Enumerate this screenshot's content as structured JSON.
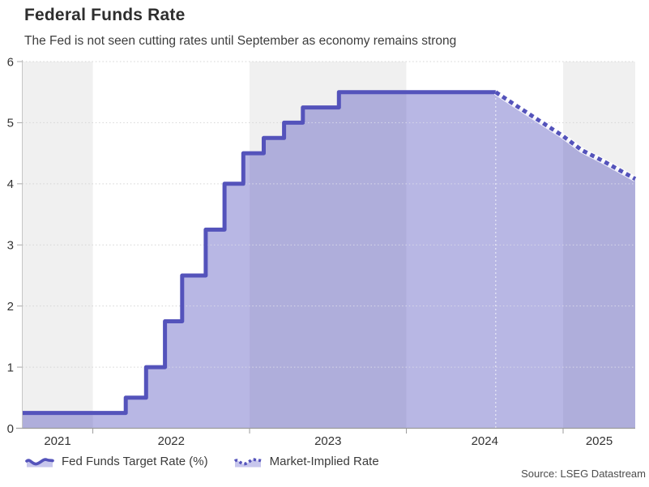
{
  "header": {
    "title": "Federal Funds Rate",
    "subtitle": "The Fed is not seen cutting rates until September as economy remains strong"
  },
  "legend": {
    "items": [
      {
        "label": "Fed Funds Target Rate (%)",
        "style": "solid",
        "icon": "solid-wave-key-icon"
      },
      {
        "label": "Market-Implied Rate",
        "style": "dotted",
        "icon": "dotted-wave-key-icon"
      }
    ]
  },
  "source": "Source: LSEG Datastream",
  "colors": {
    "line": "#5453bb",
    "fill": "rgba(85,83,190,0.42)",
    "band": "#f0f0f0",
    "grid": "#d4d4d4",
    "grid_overlay": "rgba(255,255,255,0.65)",
    "axis_x": "#9b9b9b",
    "axis_y": "#c6c6c6",
    "tick": "#a8a8a8",
    "label": "#333333",
    "legend_key_fill": "#c7c6ec"
  },
  "chart_data": {
    "type": "area",
    "title": "Federal Funds Rate",
    "subtitle": "The Fed is not seen cutting rates until September as economy remains strong",
    "xlabel": "",
    "ylabel": "",
    "x_range": [
      2021.55,
      2025.46
    ],
    "ylim": [
      0,
      6
    ],
    "y_ticks": [
      0,
      1,
      2,
      3,
      4,
      5,
      6
    ],
    "x_year_labels": [
      "2021",
      "2022",
      "2023",
      "2024",
      "2025"
    ],
    "x_year_start_ticks": [
      2022,
      2023,
      2024,
      2025
    ],
    "shaded_band_years": [
      2021,
      2023,
      2025
    ],
    "grid": true,
    "legend_position": "bottom-left",
    "marker_x": 2024.57,
    "series": [
      {
        "name": "Fed Funds Target Rate (%)",
        "line_style": "solid",
        "step": true,
        "points": [
          [
            2021.55,
            0.25
          ],
          [
            2022.21,
            0.25
          ],
          [
            2022.21,
            0.5
          ],
          [
            2022.34,
            0.5
          ],
          [
            2022.34,
            1.0
          ],
          [
            2022.46,
            1.0
          ],
          [
            2022.46,
            1.75
          ],
          [
            2022.57,
            1.75
          ],
          [
            2022.57,
            2.5
          ],
          [
            2022.72,
            2.5
          ],
          [
            2022.72,
            3.25
          ],
          [
            2022.84,
            3.25
          ],
          [
            2022.84,
            4.0
          ],
          [
            2022.96,
            4.0
          ],
          [
            2022.96,
            4.5
          ],
          [
            2023.09,
            4.5
          ],
          [
            2023.09,
            4.75
          ],
          [
            2023.22,
            4.75
          ],
          [
            2023.22,
            5.0
          ],
          [
            2023.34,
            5.0
          ],
          [
            2023.34,
            5.25
          ],
          [
            2023.57,
            5.25
          ],
          [
            2023.57,
            5.5
          ],
          [
            2024.57,
            5.5
          ]
        ]
      },
      {
        "name": "Market-Implied Rate",
        "line_style": "dotted",
        "step": false,
        "points": [
          [
            2024.57,
            5.5
          ],
          [
            2024.7,
            5.28
          ],
          [
            2024.88,
            4.98
          ],
          [
            2025.0,
            4.78
          ],
          [
            2025.12,
            4.55
          ],
          [
            2025.25,
            4.38
          ],
          [
            2025.46,
            4.08
          ]
        ]
      }
    ]
  }
}
